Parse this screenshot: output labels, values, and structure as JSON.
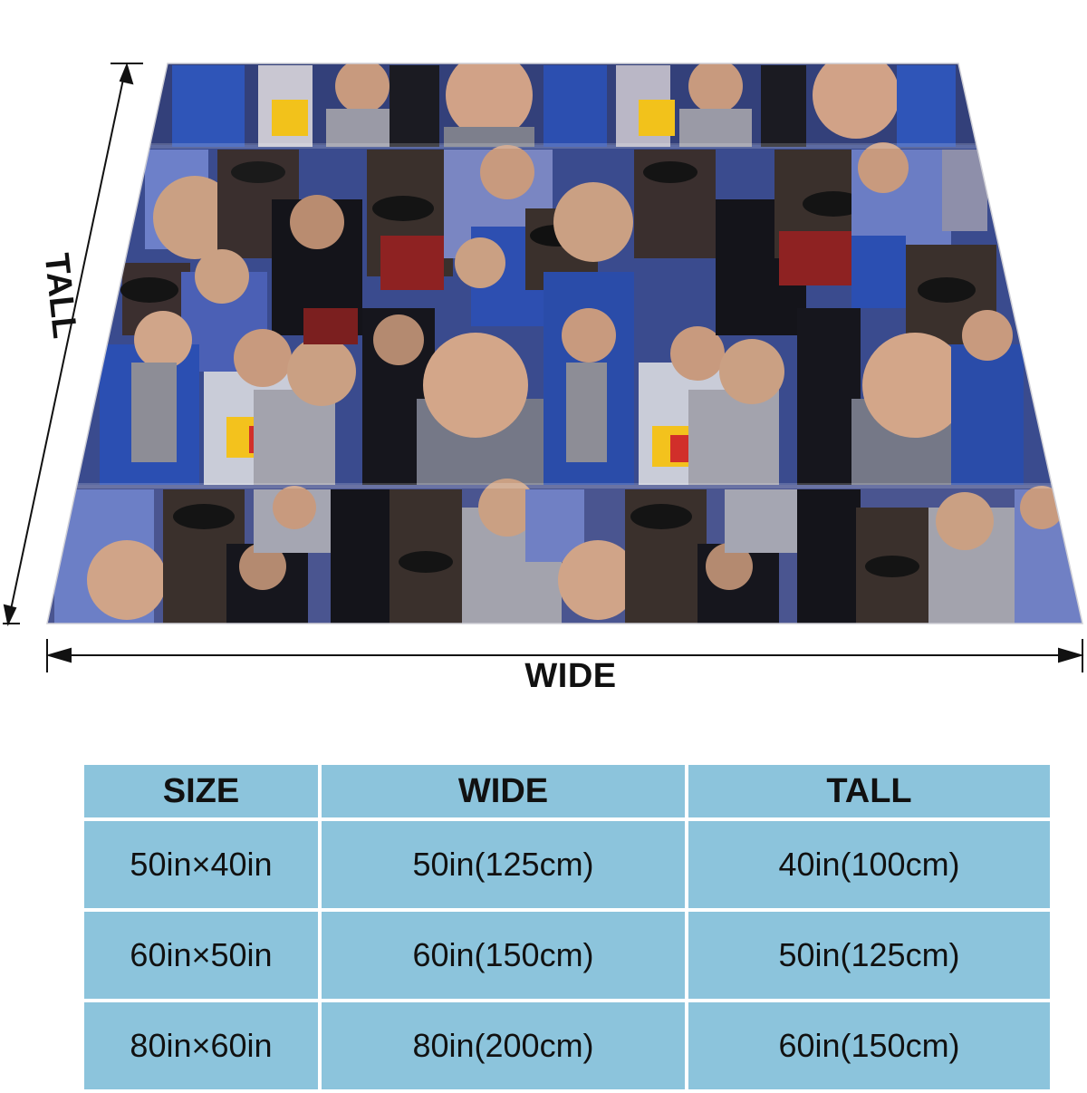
{
  "dimensions": {
    "wide_label": "WIDE",
    "tall_label": "TALL"
  },
  "size_table": {
    "headers": [
      "SIZE",
      "WIDE",
      "TALL"
    ],
    "rows": [
      [
        "50in×40in",
        "50in(125cm)",
        "40in(100cm)"
      ],
      [
        "60in×50in",
        "60in(150cm)",
        "50in(125cm)"
      ],
      [
        "80in×60in",
        "80in(200cm)",
        "60in(150cm)"
      ]
    ]
  },
  "colors": {
    "table_cell": "#8cc4dc",
    "divider": "#ffffff",
    "text": "#111111"
  }
}
